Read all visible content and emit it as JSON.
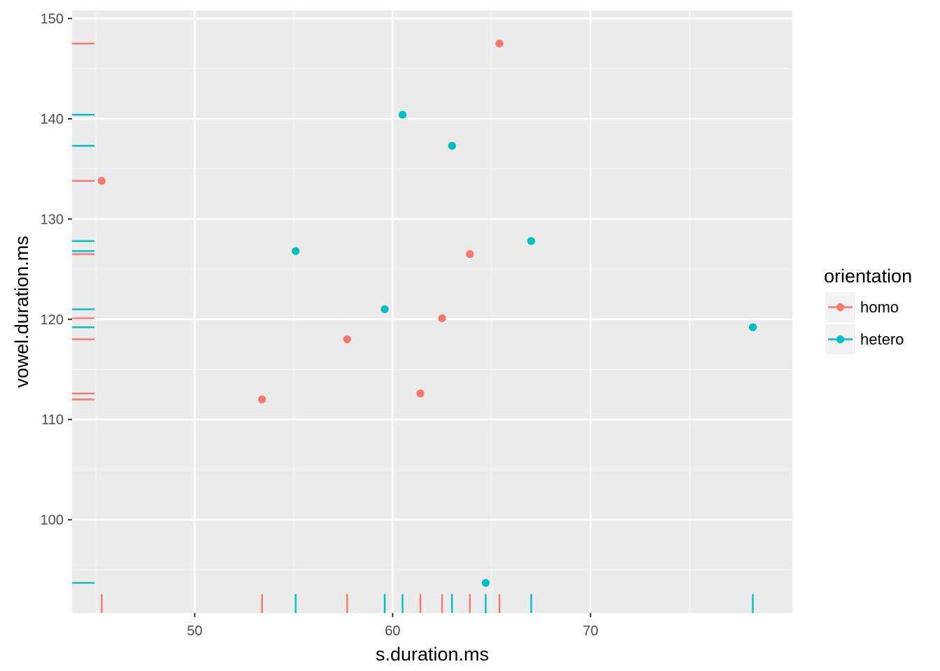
{
  "chart_data": {
    "type": "scatter",
    "xlabel": "s.duration.ms",
    "ylabel": "vowel.duration.ms",
    "xlim": [
      43.8,
      80.2
    ],
    "ylim": [
      90.7,
      150.8
    ],
    "x_ticks": [
      50,
      60,
      70
    ],
    "y_ticks": [
      100,
      110,
      120,
      130,
      140,
      150
    ],
    "grid": true,
    "rug": true,
    "legend": {
      "title": "orientation",
      "position": "right",
      "entries": [
        "homo",
        "hetero"
      ]
    },
    "series": [
      {
        "name": "homo",
        "color": "#F8766D",
        "points": [
          {
            "x": 45.3,
            "y": 133.8
          },
          {
            "x": 53.4,
            "y": 112.0
          },
          {
            "x": 57.7,
            "y": 118.0
          },
          {
            "x": 61.4,
            "y": 112.6
          },
          {
            "x": 62.5,
            "y": 120.1
          },
          {
            "x": 63.9,
            "y": 126.5
          },
          {
            "x": 65.4,
            "y": 147.5
          }
        ]
      },
      {
        "name": "hetero",
        "color": "#00BFC4",
        "points": [
          {
            "x": 55.1,
            "y": 126.8
          },
          {
            "x": 59.6,
            "y": 121.0
          },
          {
            "x": 60.5,
            "y": 140.4
          },
          {
            "x": 63.0,
            "y": 137.3
          },
          {
            "x": 64.7,
            "y": 93.7
          },
          {
            "x": 67.0,
            "y": 127.8
          },
          {
            "x": 78.2,
            "y": 119.2
          }
        ]
      }
    ]
  }
}
